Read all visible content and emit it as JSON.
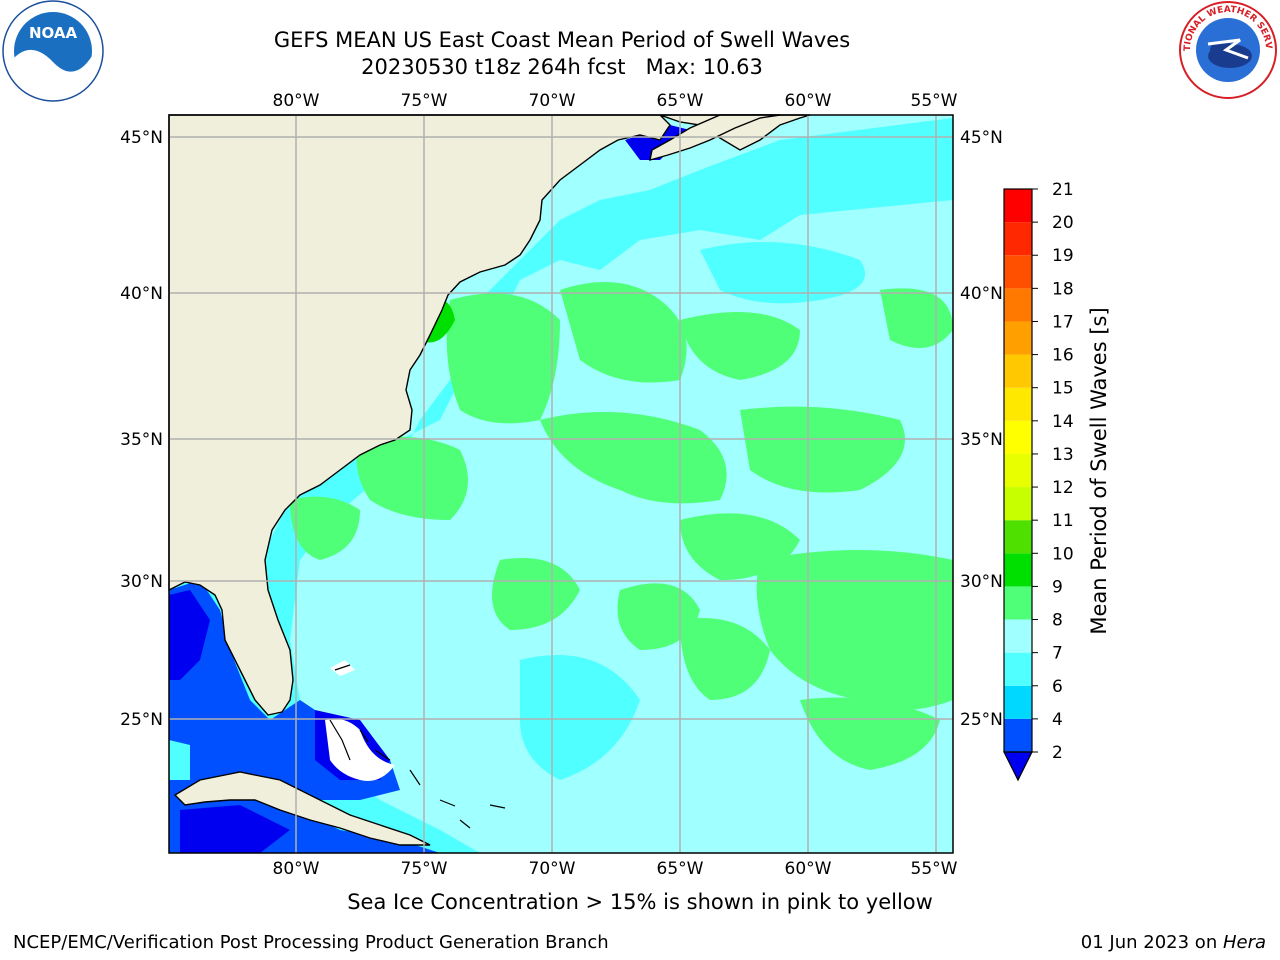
{
  "header": {
    "title_line1": "GEFS MEAN US East Coast Mean Period of Swell Waves",
    "title_line2": "20230530 t18z 264h fcst   Max: 10.63"
  },
  "map": {
    "lon_labels": [
      "80°W",
      "75°W",
      "70°W",
      "65°W",
      "60°W",
      "55°W"
    ],
    "lat_labels": [
      "45°N",
      "40°N",
      "35°N",
      "30°N",
      "25°N"
    ],
    "land_color": "#efefdc",
    "grid_color": "#b0b0b0"
  },
  "colorbar": {
    "title": "Mean Period of Swell Waves [s]",
    "levels": [
      "2",
      "4",
      "6",
      "7",
      "8",
      "9",
      "10",
      "11",
      "12",
      "13",
      "14",
      "15",
      "16",
      "17",
      "18",
      "19",
      "20",
      "21"
    ],
    "colors": [
      "#0050ff",
      "#00d8ff",
      "#50ffff",
      "#a0ffff",
      "#50ff78",
      "#00e000",
      "#50e000",
      "#c8ff00",
      "#e8ff00",
      "#ffff00",
      "#ffe800",
      "#ffc800",
      "#ffa000",
      "#ff7800",
      "#ff5000",
      "#ff2800",
      "#ff0000"
    ],
    "under_color": "#0000f0"
  },
  "footer": {
    "note": "Sea Ice Concentration > 15% is shown in pink to yellow",
    "left": "NCEP/EMC/Verification Post Processing Product Generation Branch",
    "right_date": "01 Jun 2023 on ",
    "right_host": "Hera"
  },
  "logos": {
    "noaa_text": "NOAA",
    "nws_text": "NATIONAL WEATHER SERVICE"
  }
}
